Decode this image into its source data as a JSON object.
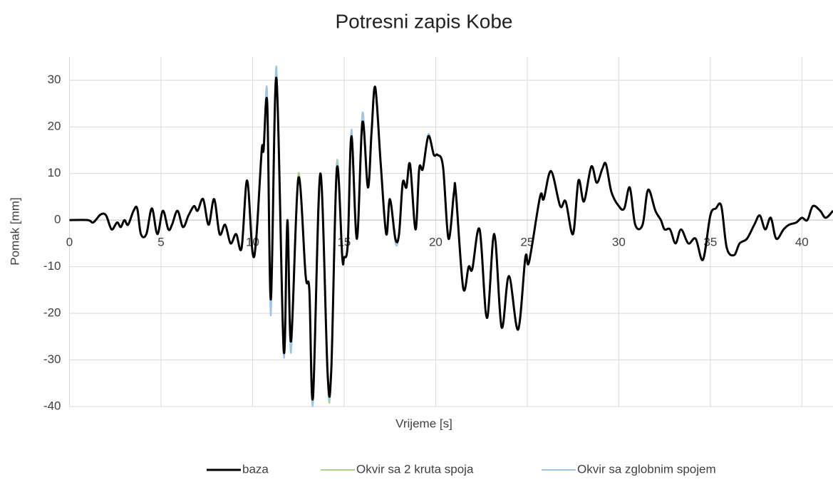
{
  "chart_data": {
    "type": "line",
    "title": "Potresni zapis Kobe",
    "x_label": "Vrijeme [s]",
    "y_label": "Pomak [mm]",
    "x": [
      0,
      1,
      1.3,
      1.7,
      2.0,
      2.3,
      2.6,
      2.8,
      3.0,
      3.2,
      3.5,
      3.7,
      3.9,
      4.2,
      4.5,
      4.8,
      5.1,
      5.4,
      5.6,
      5.9,
      6.2,
      6.5,
      6.8,
      7.0,
      7.3,
      7.6,
      7.9,
      8.2,
      8.5,
      8.8,
      9.1,
      9.4,
      9.7,
      10.0,
      10.2,
      10.5,
      10.6,
      10.8,
      11.0,
      11.3,
      11.7,
      11.9,
      12.1,
      12.5,
      12.9,
      13.1,
      13.3,
      13.7,
      14.1,
      14.3,
      14.6,
      14.9,
      15.0,
      15.2,
      15.4,
      15.7,
      16.0,
      16.3,
      16.5,
      16.7,
      17.0,
      17.3,
      17.5,
      17.8,
      18.0,
      18.2,
      18.4,
      18.6,
      18.9,
      19.1,
      19.3,
      19.6,
      19.9,
      20.1,
      20.4,
      20.7,
      21.0,
      21.1,
      21.5,
      21.8,
      22.0,
      22.4,
      22.8,
      23.2,
      23.6,
      24.0,
      24.5,
      24.9,
      25.1,
      25.7,
      25.9,
      26.3,
      26.8,
      27.1,
      27.5,
      27.8,
      28.1,
      28.5,
      28.8,
      29.1,
      29.3,
      29.6,
      30.0,
      30.3,
      30.6,
      30.9,
      31.3,
      31.6,
      32.0,
      32.3,
      32.5,
      32.8,
      33.1,
      33.4,
      33.8,
      34.2,
      34.6,
      35.0,
      35.3,
      35.6,
      35.9,
      36.3,
      36.6,
      37.0,
      37.4,
      37.7,
      38.0,
      38.3,
      38.6,
      39.0,
      39.3,
      39.7,
      40.0,
      40.3,
      40.6,
      41.0,
      41.3,
      41.7
    ],
    "series": [
      {
        "name": "baza",
        "color": "#000000",
        "values": [
          0,
          0,
          -0.5,
          1.2,
          1.0,
          -2,
          -0.5,
          -1.5,
          0,
          -1,
          2,
          2.5,
          -3,
          -3,
          2.5,
          -3,
          2,
          -2,
          -1,
          2,
          -1.5,
          1,
          3,
          2,
          4.5,
          -1,
          4.5,
          -3,
          -1,
          -5,
          -3,
          -6,
          8.5,
          -7,
          -4,
          15,
          15,
          25,
          -17,
          30.5,
          -28,
          0,
          -26,
          9,
          -12,
          -15,
          -38,
          10,
          -33,
          -32,
          11,
          -8,
          -8,
          -5,
          18,
          -4,
          21,
          7,
          19,
          28.5,
          12,
          -3,
          4.5,
          -4,
          -3,
          8,
          7,
          12,
          -2,
          11,
          11,
          18,
          14,
          14,
          11.5,
          -4,
          6,
          6,
          -14.5,
          -10,
          -10.5,
          -2,
          -21,
          -3,
          -23,
          -12,
          -23.5,
          -8,
          -9,
          5,
          4.5,
          10.5,
          3,
          4,
          -3,
          8.5,
          4,
          11.5,
          8,
          11,
          12,
          6,
          3,
          2.5,
          7,
          -1,
          -1,
          6.5,
          2,
          0,
          -2,
          -2,
          -5,
          -2,
          -5,
          -4,
          -8.5,
          1,
          2.5,
          3,
          -6,
          -7.5,
          -5,
          -4,
          -1,
          1,
          -2,
          0.5,
          -4,
          -2,
          -1,
          -0.5,
          0.5,
          0,
          3,
          2,
          0.5,
          2
        ]
      },
      {
        "name": "Okvir sa 2 kruta spoja",
        "color": "#a9d18e",
        "values": [
          0,
          0,
          -0.5,
          1.2,
          1.0,
          -2,
          -0.5,
          -1.5,
          0,
          -1,
          2,
          2.5,
          -3,
          -3,
          2.5,
          -3,
          2,
          -2,
          -1,
          2,
          -1.5,
          1,
          3,
          2,
          4.5,
          -1,
          4.5,
          -3,
          -1,
          -5,
          -3,
          -6,
          8.5,
          -7,
          -4,
          15,
          15,
          25,
          -17,
          32,
          -28,
          0,
          -26,
          10,
          -12,
          -15,
          -38.5,
          10,
          -35,
          -32,
          12.5,
          -8,
          -8,
          -5,
          19,
          -4,
          23,
          7,
          19,
          28.5,
          12,
          -3,
          4.5,
          -4,
          -3,
          8,
          7,
          12,
          -2,
          11,
          11,
          18,
          14,
          14,
          11.5,
          -4,
          6,
          6,
          -14.5,
          -10,
          -10.5,
          -2,
          -21,
          -3,
          -23,
          -12,
          -23.5,
          -8,
          -9,
          5,
          4.5,
          10.5,
          3,
          4,
          -3,
          8.5,
          4,
          11.5,
          8,
          11,
          12,
          6,
          3,
          2.5,
          7,
          -1,
          -1,
          6.5,
          2,
          0,
          -2,
          -2,
          -5,
          -2,
          -5,
          -4,
          -8.5,
          1,
          2.5,
          3,
          -6,
          -7.5,
          -5,
          -4,
          -1,
          1,
          -2,
          0.5,
          -4,
          -2,
          -1,
          -0.5,
          0.5,
          0,
          3,
          2,
          0.5,
          2
        ]
      },
      {
        "name": "Okvir sa zglobnim spojem",
        "color": "#9dc3e6",
        "values": [
          0,
          0,
          -0.5,
          1.2,
          1.0,
          -2,
          -0.5,
          -1.5,
          0,
          -1,
          2,
          2.5,
          -3,
          -3,
          2.5,
          -3,
          2,
          -2,
          -1,
          2,
          -1.5,
          1,
          3,
          2,
          4.5,
          -1,
          4.5,
          -3,
          -1,
          -5,
          -3,
          -6,
          8.5,
          -7,
          -4,
          15,
          15,
          27.5,
          -20.5,
          33,
          -29,
          0,
          -28.5,
          9,
          -12,
          -15,
          -39.5,
          10,
          -34,
          -32,
          12,
          -8,
          -8,
          -5,
          19.5,
          -4,
          23,
          7,
          19,
          28.5,
          12,
          -3,
          4.5,
          -5,
          -3,
          8,
          7,
          12,
          -2,
          11,
          11,
          18.5,
          14,
          14,
          11.5,
          -4,
          6,
          6,
          -14.5,
          -10,
          -10.5,
          -2,
          -21,
          -3,
          -23,
          -12,
          -23.5,
          -8,
          -9,
          5,
          4.5,
          10.5,
          3,
          4,
          -3,
          8.5,
          4,
          11.5,
          8,
          11,
          12,
          6,
          3,
          2.5,
          7,
          -1,
          -1,
          6.5,
          2,
          0,
          -2,
          -2,
          -5,
          -2,
          -5,
          -4,
          -8.5,
          1,
          2.5,
          3,
          -6,
          -7.5,
          -5,
          -4,
          -1,
          1,
          -2,
          0.5,
          -4,
          -2,
          -1,
          -0.5,
          0.5,
          0,
          3,
          2,
          0.5,
          2
        ]
      }
    ],
    "xlim": [
      0,
      41.7
    ],
    "xticks": [
      0,
      5,
      10,
      15,
      20,
      25,
      30,
      35,
      40
    ],
    "ylim": [
      -40,
      35
    ],
    "yticks": [
      -40,
      -30,
      -20,
      -10,
      0,
      10,
      20,
      30
    ],
    "grid": true,
    "legend": "bottom"
  }
}
